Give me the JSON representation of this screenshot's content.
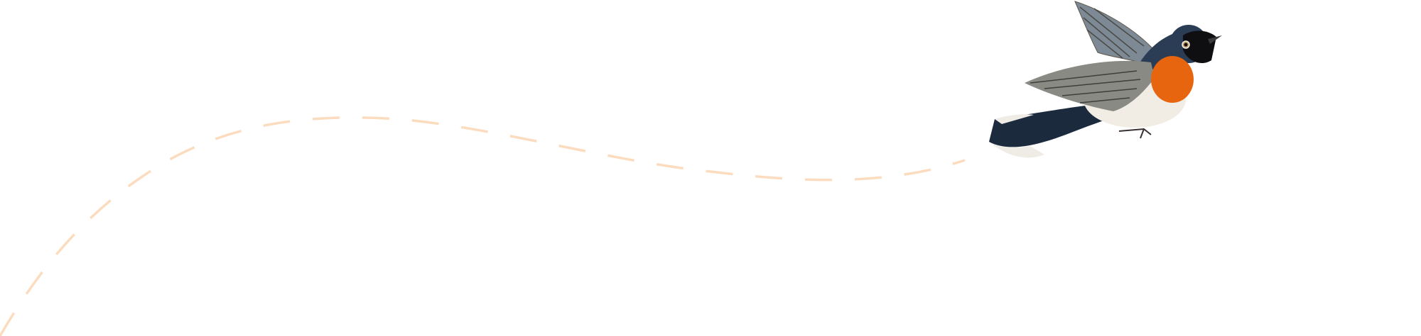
{
  "illustration": {
    "subject": "bird-icon",
    "path_style": "dashed",
    "colors": {
      "background": "#ffffff",
      "flight_path": "#fcdcbf",
      "bird_back": "#2b3d55",
      "bird_throat": "#e8650f",
      "bird_belly": "#f1ede4",
      "bird_wing": "#8a8a84"
    }
  }
}
